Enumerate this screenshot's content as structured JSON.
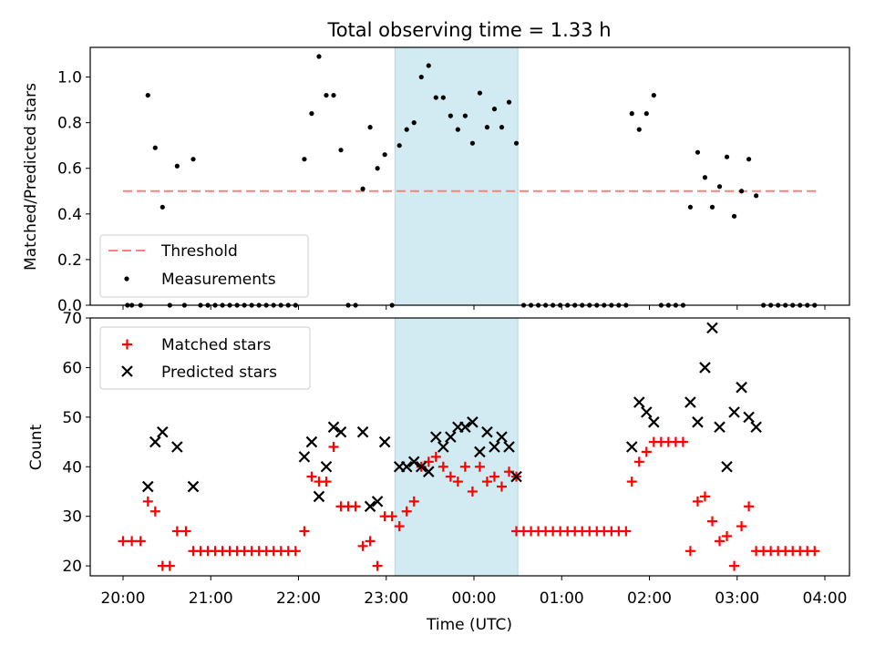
{
  "chart_data": {
    "title": "Total observing time = 1.33 h",
    "x_label": "Time (UTC)",
    "x_ticks": [
      "20:00",
      "21:00",
      "22:00",
      "23:00",
      "00:00",
      "01:00",
      "02:00",
      "03:00",
      "04:00"
    ],
    "highlight": {
      "start": "23:06",
      "end": "00:30",
      "color": "#add8e6"
    },
    "panels": [
      {
        "type": "scatter",
        "y_label": "Matched/Predicted stars",
        "ylim": [
          0,
          1.13
        ],
        "y_ticks": [
          "0.0",
          "0.2",
          "0.4",
          "0.6",
          "0.8",
          "1.0"
        ],
        "legend_position": "lower-left",
        "threshold": {
          "name": "Threshold",
          "value": 0.5,
          "x_start": "20:00",
          "x_end": "03:55",
          "color": "#ff7f7f"
        },
        "series": [
          {
            "name": "Measurements",
            "marker": "dot",
            "color": "#000000",
            "points": [
              [
                "20:03",
                0
              ],
              [
                "20:06",
                0
              ],
              [
                "20:12",
                0
              ],
              [
                "20:17",
                0.92
              ],
              [
                "20:22",
                0.69
              ],
              [
                "20:27",
                0.43
              ],
              [
                "20:32",
                0
              ],
              [
                "20:37",
                0.61
              ],
              [
                "20:42",
                0
              ],
              [
                "20:48",
                0.64
              ],
              [
                "20:53",
                0
              ],
              [
                "20:58",
                0
              ],
              [
                "21:03",
                0
              ],
              [
                "21:08",
                0
              ],
              [
                "21:13",
                0
              ],
              [
                "21:18",
                0
              ],
              [
                "21:23",
                0
              ],
              [
                "21:28",
                0
              ],
              [
                "21:33",
                0
              ],
              [
                "21:38",
                0
              ],
              [
                "21:43",
                0
              ],
              [
                "21:48",
                0
              ],
              [
                "21:53",
                0
              ],
              [
                "21:58",
                0
              ],
              [
                "22:04",
                0.64
              ],
              [
                "22:09",
                0.84
              ],
              [
                "22:14",
                1.09
              ],
              [
                "22:19",
                0.92
              ],
              [
                "22:24",
                0.92
              ],
              [
                "22:29",
                0.68
              ],
              [
                "22:34",
                0
              ],
              [
                "22:39",
                0
              ],
              [
                "22:44",
                0.51
              ],
              [
                "22:49",
                0.78
              ],
              [
                "22:54",
                0.6
              ],
              [
                "22:59",
                0.66
              ],
              [
                "23:04",
                0
              ],
              [
                "23:09",
                0.7
              ],
              [
                "23:14",
                0.77
              ],
              [
                "23:19",
                0.8
              ],
              [
                "23:24",
                1.0
              ],
              [
                "23:29",
                1.05
              ],
              [
                "23:34",
                0.91
              ],
              [
                "23:39",
                0.91
              ],
              [
                "23:44",
                0.83
              ],
              [
                "23:49",
                0.77
              ],
              [
                "23:54",
                0.83
              ],
              [
                "23:59",
                0.71
              ],
              [
                "00:04",
                0.93
              ],
              [
                "00:09",
                0.78
              ],
              [
                "00:14",
                0.86
              ],
              [
                "00:19",
                0.78
              ],
              [
                "00:24",
                0.89
              ],
              [
                "00:29",
                0.71
              ],
              [
                "00:34",
                0
              ],
              [
                "00:39",
                0
              ],
              [
                "00:44",
                0
              ],
              [
                "00:49",
                0
              ],
              [
                "00:54",
                0
              ],
              [
                "00:59",
                0
              ],
              [
                "01:04",
                0
              ],
              [
                "01:09",
                0
              ],
              [
                "01:14",
                0
              ],
              [
                "01:19",
                0
              ],
              [
                "01:24",
                0
              ],
              [
                "01:29",
                0
              ],
              [
                "01:34",
                0
              ],
              [
                "01:39",
                0
              ],
              [
                "01:44",
                0
              ],
              [
                "01:48",
                0.84
              ],
              [
                "01:53",
                0.77
              ],
              [
                "01:58",
                0.84
              ],
              [
                "02:03",
                0.92
              ],
              [
                "02:08",
                0
              ],
              [
                "02:13",
                0
              ],
              [
                "02:18",
                0
              ],
              [
                "02:23",
                0
              ],
              [
                "02:28",
                0.43
              ],
              [
                "02:33",
                0.67
              ],
              [
                "02:38",
                0.56
              ],
              [
                "02:43",
                0.43
              ],
              [
                "02:48",
                0.52
              ],
              [
                "02:53",
                0.65
              ],
              [
                "02:58",
                0.39
              ],
              [
                "03:03",
                0.5
              ],
              [
                "03:08",
                0.64
              ],
              [
                "03:13",
                0.48
              ],
              [
                "03:18",
                0
              ],
              [
                "03:23",
                0
              ],
              [
                "03:28",
                0
              ],
              [
                "03:33",
                0
              ],
              [
                "03:38",
                0
              ],
              [
                "03:43",
                0
              ],
              [
                "03:48",
                0
              ],
              [
                "03:53",
                0
              ]
            ]
          }
        ]
      },
      {
        "type": "scatter",
        "y_label": "Count",
        "ylim": [
          18,
          70
        ],
        "y_ticks": [
          "20",
          "30",
          "40",
          "50",
          "60",
          "70"
        ],
        "legend_position": "upper-left",
        "series": [
          {
            "name": "Matched stars",
            "marker": "plus",
            "color": "#ff0000",
            "points": [
              [
                "20:00",
                25
              ],
              [
                "20:06",
                25
              ],
              [
                "20:12",
                25
              ],
              [
                "20:17",
                33
              ],
              [
                "20:22",
                31
              ],
              [
                "20:27",
                20
              ],
              [
                "20:32",
                20
              ],
              [
                "20:37",
                27
              ],
              [
                "20:43",
                27
              ],
              [
                "20:48",
                23
              ],
              [
                "20:53",
                23
              ],
              [
                "20:58",
                23
              ],
              [
                "21:03",
                23
              ],
              [
                "21:08",
                23
              ],
              [
                "21:13",
                23
              ],
              [
                "21:18",
                23
              ],
              [
                "21:23",
                23
              ],
              [
                "21:28",
                23
              ],
              [
                "21:33",
                23
              ],
              [
                "21:38",
                23
              ],
              [
                "21:43",
                23
              ],
              [
                "21:48",
                23
              ],
              [
                "21:53",
                23
              ],
              [
                "21:58",
                23
              ],
              [
                "22:04",
                27
              ],
              [
                "22:09",
                38
              ],
              [
                "22:14",
                37
              ],
              [
                "22:19",
                37
              ],
              [
                "22:24",
                44
              ],
              [
                "22:29",
                32
              ],
              [
                "22:34",
                32
              ],
              [
                "22:39",
                32
              ],
              [
                "22:44",
                24
              ],
              [
                "22:49",
                25
              ],
              [
                "22:54",
                20
              ],
              [
                "22:59",
                30
              ],
              [
                "23:04",
                30
              ],
              [
                "23:09",
                28
              ],
              [
                "23:14",
                31
              ],
              [
                "23:19",
                33
              ],
              [
                "23:24",
                40
              ],
              [
                "23:29",
                41
              ],
              [
                "23:34",
                42
              ],
              [
                "23:39",
                40
              ],
              [
                "23:44",
                38
              ],
              [
                "23:49",
                37
              ],
              [
                "23:54",
                40
              ],
              [
                "23:59",
                35
              ],
              [
                "00:04",
                40
              ],
              [
                "00:09",
                37
              ],
              [
                "00:14",
                38
              ],
              [
                "00:19",
                36
              ],
              [
                "00:24",
                39
              ],
              [
                "00:29",
                38
              ],
              [
                "00:29",
                27
              ],
              [
                "00:34",
                27
              ],
              [
                "00:39",
                27
              ],
              [
                "00:44",
                27
              ],
              [
                "00:49",
                27
              ],
              [
                "00:54",
                27
              ],
              [
                "00:59",
                27
              ],
              [
                "01:04",
                27
              ],
              [
                "01:09",
                27
              ],
              [
                "01:14",
                27
              ],
              [
                "01:19",
                27
              ],
              [
                "01:24",
                27
              ],
              [
                "01:29",
                27
              ],
              [
                "01:34",
                27
              ],
              [
                "01:39",
                27
              ],
              [
                "01:44",
                27
              ],
              [
                "01:48",
                37
              ],
              [
                "01:53",
                41
              ],
              [
                "01:58",
                43
              ],
              [
                "02:03",
                45
              ],
              [
                "02:08",
                45
              ],
              [
                "02:13",
                45
              ],
              [
                "02:18",
                45
              ],
              [
                "02:23",
                45
              ],
              [
                "02:28",
                23
              ],
              [
                "02:33",
                33
              ],
              [
                "02:38",
                34
              ],
              [
                "02:43",
                29
              ],
              [
                "02:48",
                25
              ],
              [
                "02:53",
                26
              ],
              [
                "02:58",
                20
              ],
              [
                "03:03",
                28
              ],
              [
                "03:08",
                32
              ],
              [
                "03:13",
                23
              ],
              [
                "03:18",
                23
              ],
              [
                "03:23",
                23
              ],
              [
                "03:28",
                23
              ],
              [
                "03:33",
                23
              ],
              [
                "03:38",
                23
              ],
              [
                "03:43",
                23
              ],
              [
                "03:48",
                23
              ],
              [
                "03:53",
                23
              ]
            ]
          },
          {
            "name": "Predicted stars",
            "marker": "x",
            "color": "#000000",
            "points": [
              [
                "20:17",
                36
              ],
              [
                "20:22",
                45
              ],
              [
                "20:27",
                47
              ],
              [
                "20:37",
                44
              ],
              [
                "20:48",
                36
              ],
              [
                "22:04",
                42
              ],
              [
                "22:09",
                45
              ],
              [
                "22:14",
                34
              ],
              [
                "22:19",
                40
              ],
              [
                "22:24",
                48
              ],
              [
                "22:29",
                47
              ],
              [
                "22:44",
                47
              ],
              [
                "22:49",
                32
              ],
              [
                "22:54",
                33
              ],
              [
                "22:59",
                45
              ],
              [
                "23:09",
                40
              ],
              [
                "23:14",
                40
              ],
              [
                "23:19",
                41
              ],
              [
                "23:24",
                40
              ],
              [
                "23:29",
                39
              ],
              [
                "23:34",
                46
              ],
              [
                "23:39",
                44
              ],
              [
                "23:44",
                46
              ],
              [
                "23:49",
                48
              ],
              [
                "23:54",
                48
              ],
              [
                "23:59",
                49
              ],
              [
                "00:04",
                43
              ],
              [
                "00:09",
                47
              ],
              [
                "00:14",
                44
              ],
              [
                "00:19",
                46
              ],
              [
                "00:24",
                44
              ],
              [
                "00:29",
                38
              ],
              [
                "01:48",
                44
              ],
              [
                "01:53",
                53
              ],
              [
                "01:58",
                51
              ],
              [
                "02:03",
                49
              ],
              [
                "02:28",
                53
              ],
              [
                "02:33",
                49
              ],
              [
                "02:38",
                60
              ],
              [
                "02:43",
                68
              ],
              [
                "02:48",
                48
              ],
              [
                "02:53",
                40
              ],
              [
                "02:58",
                51
              ],
              [
                "03:03",
                56
              ],
              [
                "03:08",
                50
              ],
              [
                "03:13",
                48
              ]
            ]
          }
        ]
      }
    ]
  }
}
